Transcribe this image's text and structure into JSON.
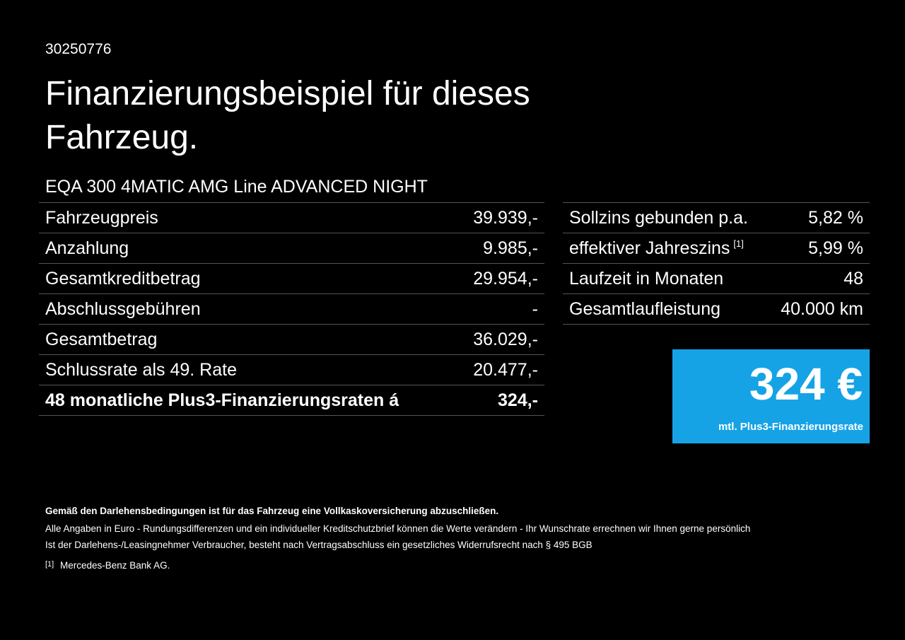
{
  "header": {
    "id": "30250776",
    "title": "Finanzierungsbeispiel für dieses Fahrzeug.",
    "model": "EQA 300 4MATIC AMG Line ADVANCED NIGHT"
  },
  "left_table": {
    "rows": [
      {
        "label": "Fahrzeugpreis",
        "value": "39.939,-"
      },
      {
        "label": "Anzahlung",
        "value": "9.985,-"
      },
      {
        "label": "Gesamtkreditbetrag",
        "value": "29.954,-"
      },
      {
        "label": "Abschlussgebühren",
        "value": "-"
      },
      {
        "label": "Gesamtbetrag",
        "value": "36.029,-"
      },
      {
        "label": "Schlussrate als 49. Rate",
        "value": "20.477,-"
      },
      {
        "label": "48 monatliche Plus3-Finanzierungsraten á",
        "value": "324,-"
      }
    ]
  },
  "right_table": {
    "rows": [
      {
        "label": "Sollzins gebunden p.a.",
        "value": "5,82 %"
      },
      {
        "label": "effektiver Jahreszins",
        "footnote": "[1]",
        "value": "5,99 %"
      },
      {
        "label": "Laufzeit in Monaten",
        "value": "48"
      },
      {
        "label": "Gesamtlaufleistung",
        "value": "40.000 km"
      }
    ]
  },
  "highlight": {
    "amount": "324 €",
    "caption": "mtl. Plus3-Finanzierungsrate"
  },
  "footer": {
    "bold_note": "Gemäß den Darlehensbedingungen ist für das Fahrzeug eine Vollkaskoversicherung abzuschließen.",
    "notes": [
      "Alle Angaben in Euro - Rundungsdifferenzen und ein individueller Kreditschutzbrief können die Werte verändern - Ihr Wunschrate errechnen wir Ihnen gerne persönlich",
      "Ist der Darlehens-/Leasingnehmer Verbraucher, besteht nach Vertragsabschluss ein gesetzliches Widerrufsrecht nach § 495 BGB"
    ],
    "footnote_mark": "[1]",
    "footnote_text": "Mercedes-Benz Bank AG."
  }
}
